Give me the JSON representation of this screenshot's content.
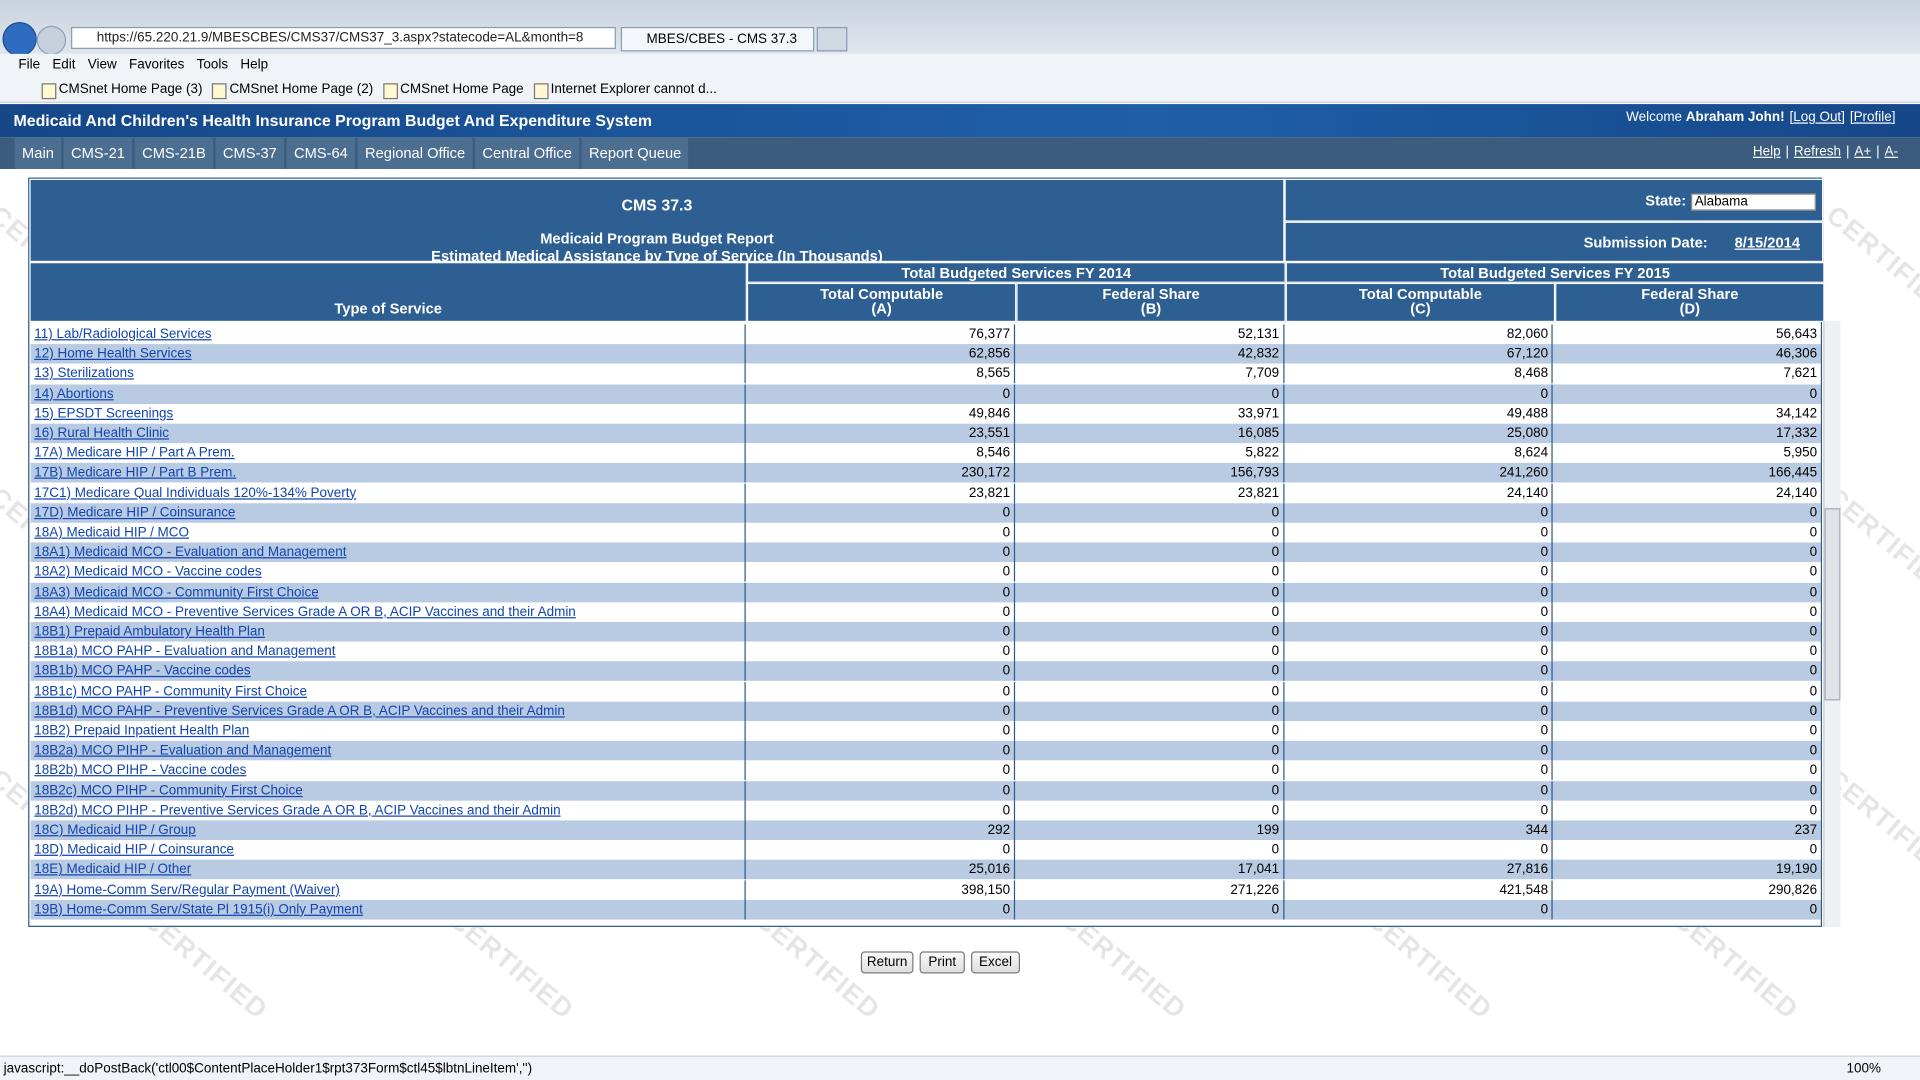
{
  "browser": {
    "url": "https://65.220.21.9/MBESCBES/CMS37/CMS37_3.aspx?statecode=AL&month=8",
    "tab": "MBES/CBES - CMS 37.3",
    "menu": [
      "File",
      "Edit",
      "View",
      "Favorites",
      "Tools",
      "Help"
    ],
    "favorites": [
      "CMSnet Home Page (3)",
      "CMSnet Home Page (2)",
      "CMSnet Home Page",
      "Internet Explorer cannot d..."
    ],
    "status": "javascript:__doPostBack('ctl00$ContentPlaceHolder1$rpt373Form$ctl45$lbtnLineItem','')",
    "zoom": "100%"
  },
  "app": {
    "title": "Medicaid And Children's Health Insurance Program Budget And Expenditure System",
    "welcome": "Welcome",
    "user": "Abraham John!",
    "links": [
      "Log Out",
      "Profile"
    ],
    "nav": [
      "Main",
      "CMS-21",
      "CMS-21B",
      "CMS-37",
      "CMS-64",
      "Regional Office",
      "Central Office",
      "Report Queue"
    ],
    "right_nav": [
      "Help",
      "Refresh",
      "A+",
      "A-"
    ]
  },
  "report": {
    "code": "CMS 37.3",
    "title": "Medicaid Program Budget Report",
    "subtitle": "Estimated Medical Assistance by Type of Service (In Thousands)",
    "state_label": "State:",
    "state": "Alabama",
    "submission_label": "Submission Date:",
    "submission_date": "8/15/2014",
    "type_header": "Type of Service",
    "groups": [
      "Total Budgeted Services FY 2014",
      "Total Budgeted Services FY 2015"
    ],
    "columns": [
      {
        "name": "Total Computable",
        "code": "(A)"
      },
      {
        "name": "Federal Share",
        "code": "(B)"
      },
      {
        "name": "Total Computable",
        "code": "(C)"
      },
      {
        "name": "Federal Share",
        "code": "(D)"
      }
    ],
    "rows": [
      {
        "label": "11) Lab/Radiological Services",
        "values": [
          "76,377",
          "52,131",
          "82,060",
          "56,643"
        ]
      },
      {
        "label": "12) Home Health Services",
        "values": [
          "62,856",
          "42,832",
          "67,120",
          "46,306"
        ]
      },
      {
        "label": "13) Sterilizations",
        "values": [
          "8,565",
          "7,709",
          "8,468",
          "7,621"
        ]
      },
      {
        "label": "14) Abortions",
        "values": [
          "0",
          "0",
          "0",
          "0"
        ]
      },
      {
        "label": "15) EPSDT Screenings",
        "values": [
          "49,846",
          "33,971",
          "49,488",
          "34,142"
        ]
      },
      {
        "label": "16) Rural Health Clinic",
        "values": [
          "23,551",
          "16,085",
          "25,080",
          "17,332"
        ]
      },
      {
        "label": "17A) Medicare HIP / Part A Prem.",
        "values": [
          "8,546",
          "5,822",
          "8,624",
          "5,950"
        ]
      },
      {
        "label": "17B) Medicare HIP / Part B Prem.",
        "values": [
          "230,172",
          "156,793",
          "241,260",
          "166,445"
        ]
      },
      {
        "label": "17C1) Medicare Qual Individuals 120%-134% Poverty",
        "values": [
          "23,821",
          "23,821",
          "24,140",
          "24,140"
        ]
      },
      {
        "label": "17D) Medicare HIP / Coinsurance",
        "values": [
          "0",
          "0",
          "0",
          "0"
        ]
      },
      {
        "label": "18A) Medicaid HIP / MCO",
        "values": [
          "0",
          "0",
          "0",
          "0"
        ]
      },
      {
        "label": "18A1) Medicaid MCO - Evaluation and Management",
        "values": [
          "0",
          "0",
          "0",
          "0"
        ]
      },
      {
        "label": "18A2) Medicaid MCO - Vaccine codes",
        "values": [
          "0",
          "0",
          "0",
          "0"
        ]
      },
      {
        "label": "18A3) Medicaid MCO - Community First Choice",
        "values": [
          "0",
          "0",
          "0",
          "0"
        ]
      },
      {
        "label": "18A4) Medicaid MCO - Preventive Services Grade A OR B, ACIP Vaccines and their Admin",
        "values": [
          "0",
          "0",
          "0",
          "0"
        ]
      },
      {
        "label": "18B1) Prepaid Ambulatory Health Plan",
        "values": [
          "0",
          "0",
          "0",
          "0"
        ]
      },
      {
        "label": "18B1a) MCO PAHP - Evaluation and Management",
        "values": [
          "0",
          "0",
          "0",
          "0"
        ]
      },
      {
        "label": "18B1b) MCO PAHP - Vaccine codes",
        "values": [
          "0",
          "0",
          "0",
          "0"
        ]
      },
      {
        "label": "18B1c) MCO PAHP - Community First Choice",
        "values": [
          "0",
          "0",
          "0",
          "0"
        ]
      },
      {
        "label": "18B1d) MCO PAHP - Preventive Services Grade A OR B, ACIP Vaccines and their Admin",
        "values": [
          "0",
          "0",
          "0",
          "0"
        ]
      },
      {
        "label": "18B2) Prepaid Inpatient Health Plan",
        "values": [
          "0",
          "0",
          "0",
          "0"
        ]
      },
      {
        "label": "18B2a) MCO PIHP - Evaluation and Management",
        "values": [
          "0",
          "0",
          "0",
          "0"
        ]
      },
      {
        "label": "18B2b) MCO PIHP - Vaccine codes",
        "values": [
          "0",
          "0",
          "0",
          "0"
        ]
      },
      {
        "label": "18B2c) MCO PIHP - Community First Choice",
        "values": [
          "0",
          "0",
          "0",
          "0"
        ]
      },
      {
        "label": "18B2d) MCO PIHP - Preventive Services Grade A OR B, ACIP Vaccines and their Admin",
        "values": [
          "0",
          "0",
          "0",
          "0"
        ]
      },
      {
        "label": "18C) Medicaid HIP / Group",
        "values": [
          "292",
          "199",
          "344",
          "237"
        ]
      },
      {
        "label": "18D) Medicaid HIP / Coinsurance",
        "values": [
          "0",
          "0",
          "0",
          "0"
        ]
      },
      {
        "label": "18E) Medicaid HIP / Other",
        "values": [
          "25,016",
          "17,041",
          "27,816",
          "19,190"
        ]
      },
      {
        "label": "19A) Home-Comm Serv/Regular Payment (Waiver)",
        "values": [
          "398,150",
          "271,226",
          "421,548",
          "290,826"
        ]
      },
      {
        "label": "19B) Home-Comm Serv/State Pl 1915(i) Only Payment",
        "values": [
          "0",
          "0",
          "0",
          "0"
        ]
      }
    ],
    "buttons": [
      "Return",
      "Print",
      "Excel"
    ],
    "watermark": "CERTIFIED"
  }
}
